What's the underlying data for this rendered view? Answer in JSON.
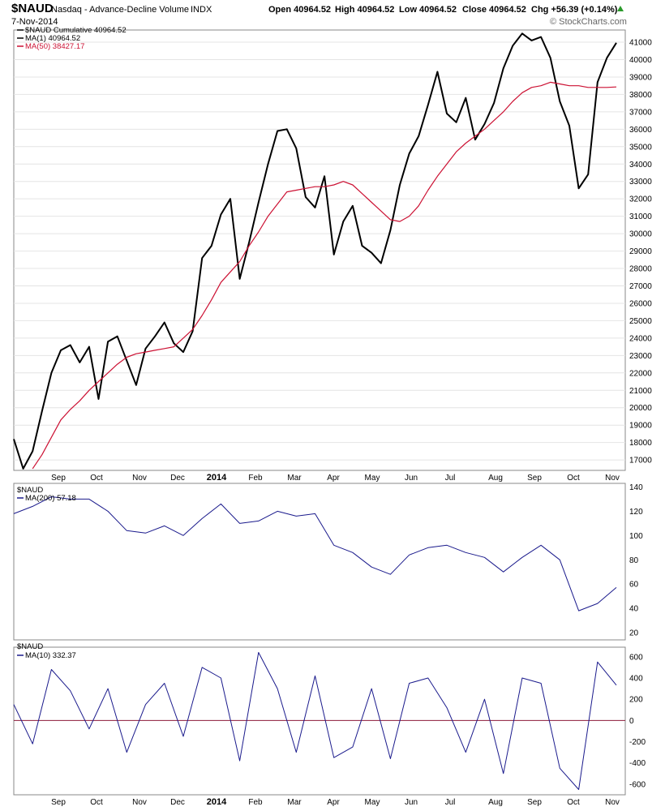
{
  "header": {
    "symbol": "$NAUD",
    "name": "Nasdaq - Advance-Decline Volume",
    "exchange": "INDX",
    "date": "7-Nov-2014",
    "open": "Open 40964.52",
    "high": "High 40964.52",
    "low": "Low 40964.52",
    "close": "Close 40964.52",
    "chg": "Chg +56.39 (+0.14%)",
    "chg_arrow": "up-triangle-icon",
    "watermark": "© StockCharts.com"
  },
  "colors": {
    "price": "#000000",
    "ma50": "#cc1133",
    "lower": "#1a1a8c",
    "zero": "#8b1a3a",
    "grid": "#e4e4e4"
  },
  "chart_data": [
    {
      "type": "line",
      "legend": [
        "$NAUD Cumulative 40964.52",
        "MA(1) 40964.52",
        "MA(50) 38427.17"
      ],
      "x": [
        "Aug 20",
        "Aug 25",
        "Sep 2",
        "Sep 9",
        "Sep 16",
        "Sep 23",
        "Sep 30",
        "Oct 7",
        "Oct 14",
        "Oct 21",
        "Oct 28",
        "Nov 4",
        "Nov 11",
        "Nov 18",
        "Nov 25",
        "Dec 2",
        "Dec 9",
        "Dec 16",
        "Dec 23",
        "Dec 30",
        "2014-01-06",
        "Jan 13",
        "Jan 20",
        "Jan 27",
        "Feb 3",
        "Feb 10",
        "Feb 17",
        "Feb 24",
        "Mar 3",
        "Mar 10",
        "Mar 17",
        "Mar 24",
        "Mar 31",
        "Apr 7",
        "Apr 14",
        "Apr 21",
        "Apr 28",
        "May 5",
        "May 12",
        "May 19",
        "May 27",
        "Jun 2",
        "Jun 9",
        "Jun 16",
        "Jun 23",
        "Jun 30",
        "Jul 7",
        "Jul 14",
        "Jul 21",
        "Jul 28",
        "Aug 4",
        "Aug 11",
        "Aug 18",
        "Aug 25",
        "Sep 2",
        "Sep 9",
        "Sep 16",
        "Sep 23",
        "Sep 30",
        "Oct 7",
        "Oct 14",
        "Oct 21",
        "Oct 28",
        "Nov 4",
        "Nov 7"
      ],
      "series": [
        {
          "name": "$NAUD Cumulative",
          "values": [
            18200,
            16500,
            17500,
            19800,
            22000,
            23300,
            23600,
            22600,
            23500,
            20500,
            23800,
            24100,
            22700,
            21300,
            23400,
            24100,
            24900,
            23700,
            23200,
            24400,
            28600,
            29300,
            31100,
            32000,
            27400,
            29500,
            31800,
            34000,
            35900,
            36000,
            34900,
            32100,
            31500,
            33300,
            28800,
            30700,
            31600,
            29300,
            28900,
            28300,
            30200,
            32800,
            34600,
            35600,
            37400,
            39300,
            36900,
            36400,
            37800,
            35400,
            36300,
            37500,
            39500,
            40800,
            41500,
            41100,
            41300,
            40100,
            37600,
            36200,
            32600,
            33400,
            38700,
            40100,
            40964.52
          ]
        },
        {
          "name": "MA(50)",
          "values": [
            null,
            null,
            16500,
            17300,
            18300,
            19300,
            19900,
            20400,
            21000,
            21500,
            22000,
            22500,
            22900,
            23100,
            23200,
            23300,
            23400,
            23500,
            24000,
            24500,
            25300,
            26200,
            27200,
            27800,
            28400,
            29300,
            30100,
            31000,
            31700,
            32400,
            32500,
            32600,
            32700,
            32700,
            32800,
            33000,
            32800,
            32300,
            31800,
            31300,
            30800,
            30700,
            31000,
            31600,
            32500,
            33300,
            34000,
            34700,
            35200,
            35600,
            36000,
            36500,
            37000,
            37600,
            38100,
            38400,
            38500,
            38700,
            38600,
            38500,
            38500,
            38400,
            38400,
            38400,
            38427.17
          ]
        }
      ],
      "ylim": [
        16400,
        41700
      ],
      "yticks": [
        17000,
        18000,
        19000,
        20000,
        21000,
        22000,
        23000,
        24000,
        25000,
        26000,
        27000,
        28000,
        29000,
        30000,
        31000,
        32000,
        33000,
        34000,
        35000,
        36000,
        37000,
        38000,
        39000,
        40000,
        41000
      ],
      "xtick_labels": [
        "Sep",
        "Oct",
        "Nov",
        "Dec",
        "2014",
        "Feb",
        "Mar",
        "Apr",
        "May",
        "Jun",
        "Jul",
        "Aug",
        "Sep",
        "Oct",
        "Nov"
      ],
      "grid": true
    },
    {
      "type": "line",
      "legend": [
        "$NAUD",
        "MA(200) 57.18"
      ],
      "x": [
        "Aug 20",
        "Sep 2",
        "Sep 16",
        "Sep 30",
        "Oct 14",
        "Oct 28",
        "Nov 11",
        "Nov 25",
        "Dec 9",
        "Dec 23",
        "2014-01-06",
        "Jan 20",
        "Feb 3",
        "Feb 17",
        "Mar 3",
        "Mar 17",
        "Mar 31",
        "Apr 14",
        "Apr 28",
        "May 12",
        "May 27",
        "Jun 9",
        "Jun 23",
        "Jul 7",
        "Jul 21",
        "Aug 4",
        "Aug 18",
        "Sep 2",
        "Sep 16",
        "Sep 30",
        "Oct 14",
        "Oct 28",
        "Nov 7"
      ],
      "series": [
        {
          "name": "MA(200)",
          "values": [
            118,
            124,
            132,
            130,
            130,
            120,
            104,
            102,
            108,
            100,
            114,
            126,
            110,
            112,
            120,
            116,
            118,
            92,
            86,
            74,
            68,
            84,
            90,
            92,
            86,
            82,
            70,
            82,
            92,
            80,
            38,
            44,
            57.18
          ]
        }
      ],
      "ylim": [
        14,
        143
      ],
      "yticks": [
        20,
        40,
        60,
        80,
        100,
        120,
        140
      ],
      "xtick_labels": [],
      "grid": false
    },
    {
      "type": "line",
      "legend": [
        "$NAUD",
        "MA(10) 332.37"
      ],
      "x": [
        "Aug 20",
        "Sep 2",
        "Sep 16",
        "Sep 30",
        "Oct 14",
        "Oct 28",
        "Nov 11",
        "Nov 25",
        "Dec 9",
        "Dec 23",
        "2014-01-06",
        "Jan 20",
        "Feb 3",
        "Feb 17",
        "Mar 3",
        "Mar 17",
        "Mar 31",
        "Apr 14",
        "Apr 28",
        "May 12",
        "May 27",
        "Jun 9",
        "Jun 23",
        "Jul 7",
        "Jul 21",
        "Aug 4",
        "Aug 18",
        "Sep 2",
        "Sep 16",
        "Sep 30",
        "Oct 14",
        "Oct 28",
        "Nov 7"
      ],
      "series": [
        {
          "name": "MA(10)",
          "values": [
            150,
            -220,
            480,
            280,
            -80,
            300,
            -300,
            150,
            350,
            -150,
            500,
            400,
            -380,
            640,
            300,
            -300,
            420,
            -350,
            -250,
            300,
            -360,
            350,
            400,
            120,
            -300,
            200,
            -500,
            400,
            350,
            -450,
            -650,
            550,
            332.37
          ]
        }
      ],
      "ylim": [
        -700,
        690
      ],
      "yticks": [
        -600,
        -400,
        -200,
        0,
        200,
        400,
        600
      ],
      "xtick_labels": [
        "Sep",
        "Oct",
        "Nov",
        "Dec",
        "2014",
        "Feb",
        "Mar",
        "Apr",
        "May",
        "Jun",
        "Jul",
        "Aug",
        "Sep",
        "Oct",
        "Nov"
      ],
      "grid": false
    }
  ]
}
